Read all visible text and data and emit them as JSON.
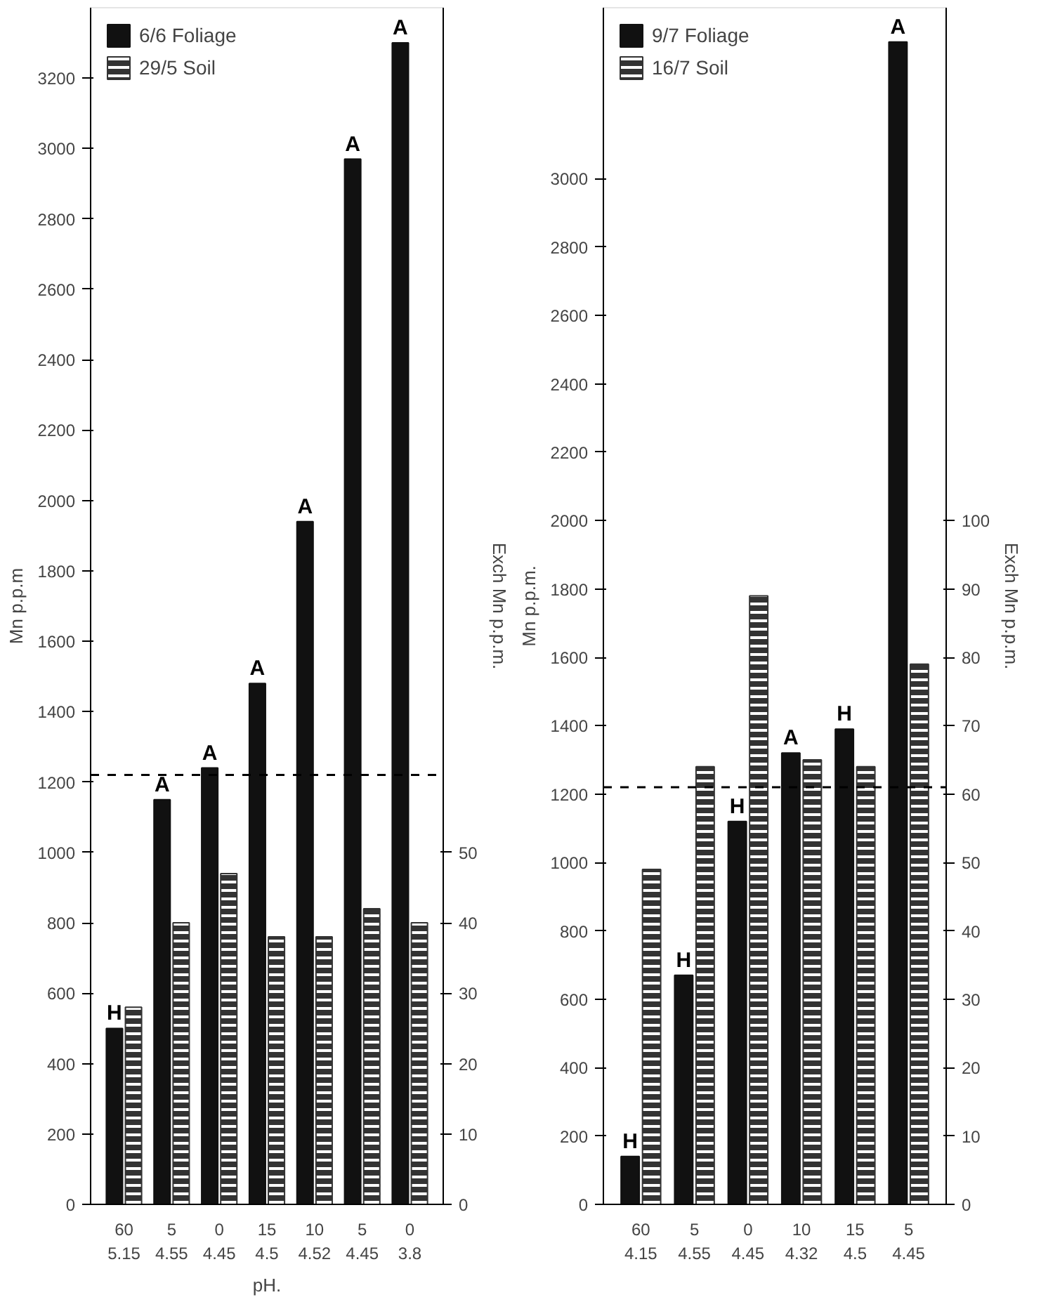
{
  "chart_data": [
    {
      "type": "bar",
      "categories": [
        "60\n5.15",
        "5\n4.55",
        "0\n4.45",
        "15\n4.5",
        "10\n4.52",
        "5\n4.45",
        "0\n3.8"
      ],
      "xlabel": "pH.",
      "ylabel": "Mn p.p.m",
      "y2label": "Exch Mn p.p.m.",
      "series": [
        {
          "name": "6/6 Foliage",
          "color": "#111111",
          "values": [
            500,
            1150,
            1240,
            1480,
            1940,
            2970,
            3300
          ],
          "value_labels": [
            "H",
            "A",
            "A",
            "A",
            "A",
            "A",
            "A"
          ]
        },
        {
          "name": "29/5 Soil",
          "color": "#333333",
          "axis": "y2",
          "values": [
            28,
            40,
            47,
            38,
            38,
            42,
            40
          ]
        }
      ],
      "ylim": [
        0,
        3400
      ],
      "yticks": [
        0,
        200,
        400,
        600,
        800,
        1000,
        1200,
        1400,
        1600,
        1800,
        2000,
        2200,
        2400,
        2600,
        2800,
        3000,
        3200
      ],
      "y2lim": [
        0,
        170
      ],
      "y2ticks": [
        0,
        10,
        20,
        30,
        40,
        50
      ],
      "ref_lines": [
        {
          "axis": "y",
          "value": 1220,
          "line_style": "dashed"
        }
      ],
      "grid": false,
      "legend": "top left"
    },
    {
      "type": "bar",
      "categories": [
        "60\n4.15",
        "5\n4.55",
        "0\n4.45",
        "10\n4.32",
        "15\n4.5",
        "5\n4.45"
      ],
      "ylabel": "Mn p.p.m.",
      "y2label": "Exch Mn p.p.m.",
      "series": [
        {
          "name": "9/7 Foliage",
          "color": "#111111",
          "values": [
            140,
            670,
            1120,
            1320,
            1390,
            3400
          ],
          "value_labels": [
            "H",
            "H",
            "H",
            "A",
            "H",
            "A"
          ]
        },
        {
          "name": "16/7 Soil",
          "color": "#333333",
          "axis": "y2",
          "values": [
            49,
            64,
            89,
            65,
            64,
            79
          ]
        }
      ],
      "ylim": [
        0,
        3500
      ],
      "yticks": [
        0,
        200,
        400,
        600,
        800,
        1000,
        1200,
        1400,
        1600,
        1800,
        2000,
        2200,
        2400,
        2600,
        2800,
        3000
      ],
      "y2lim": [
        0,
        175
      ],
      "y2ticks": [
        0,
        10,
        20,
        30,
        40,
        50,
        60,
        70,
        80,
        90,
        100
      ],
      "ref_lines": [
        {
          "axis": "y",
          "value": 1220,
          "line_style": "dashed"
        }
      ],
      "grid": false,
      "legend": "top left"
    }
  ]
}
